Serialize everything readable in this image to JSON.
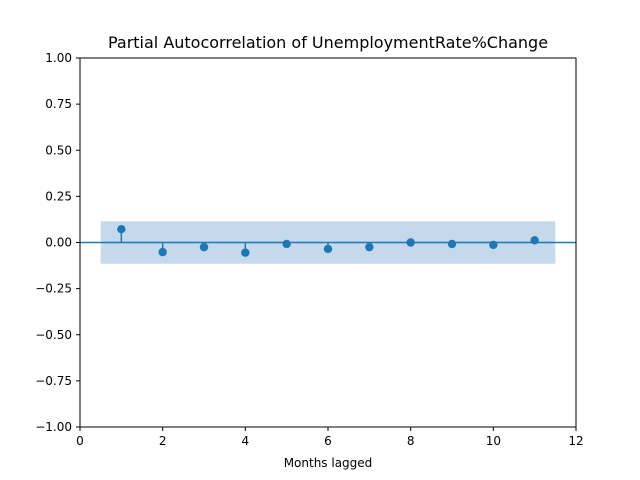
{
  "chart_data": {
    "type": "scatter",
    "title": "Partial Autocorrelation of UnemploymentRate%Change",
    "xlabel": "Months lagged",
    "ylabel": "",
    "xlim": [
      0,
      12
    ],
    "ylim": [
      -1.0,
      1.0
    ],
    "xticks": [
      0,
      2,
      4,
      6,
      8,
      10,
      12
    ],
    "xtick_labels": [
      "0",
      "2",
      "4",
      "6",
      "8",
      "10",
      "12"
    ],
    "yticks": [
      -1.0,
      -0.75,
      -0.5,
      -0.25,
      0.0,
      0.25,
      0.5,
      0.75,
      1.0
    ],
    "ytick_labels": [
      "−1.00",
      "−0.75",
      "−0.50",
      "−0.25",
      "0.00",
      "0.25",
      "0.50",
      "0.75",
      "1.00"
    ],
    "grid": false,
    "confidence_band": {
      "x_range": [
        0.5,
        11.5
      ],
      "lower": -0.115,
      "upper": 0.115
    },
    "zero_line": 0.0,
    "series": [
      {
        "x": [
          1,
          2,
          3,
          4,
          5,
          6,
          7,
          8,
          9,
          10,
          11
        ],
        "values": [
          0.072,
          -0.052,
          -0.025,
          -0.055,
          -0.008,
          -0.035,
          -0.025,
          0.0,
          -0.008,
          -0.013,
          0.012
        ]
      }
    ],
    "colors": {
      "marker": "#1f77b4",
      "band": "#c5d9ec",
      "axes": "#000000"
    }
  }
}
